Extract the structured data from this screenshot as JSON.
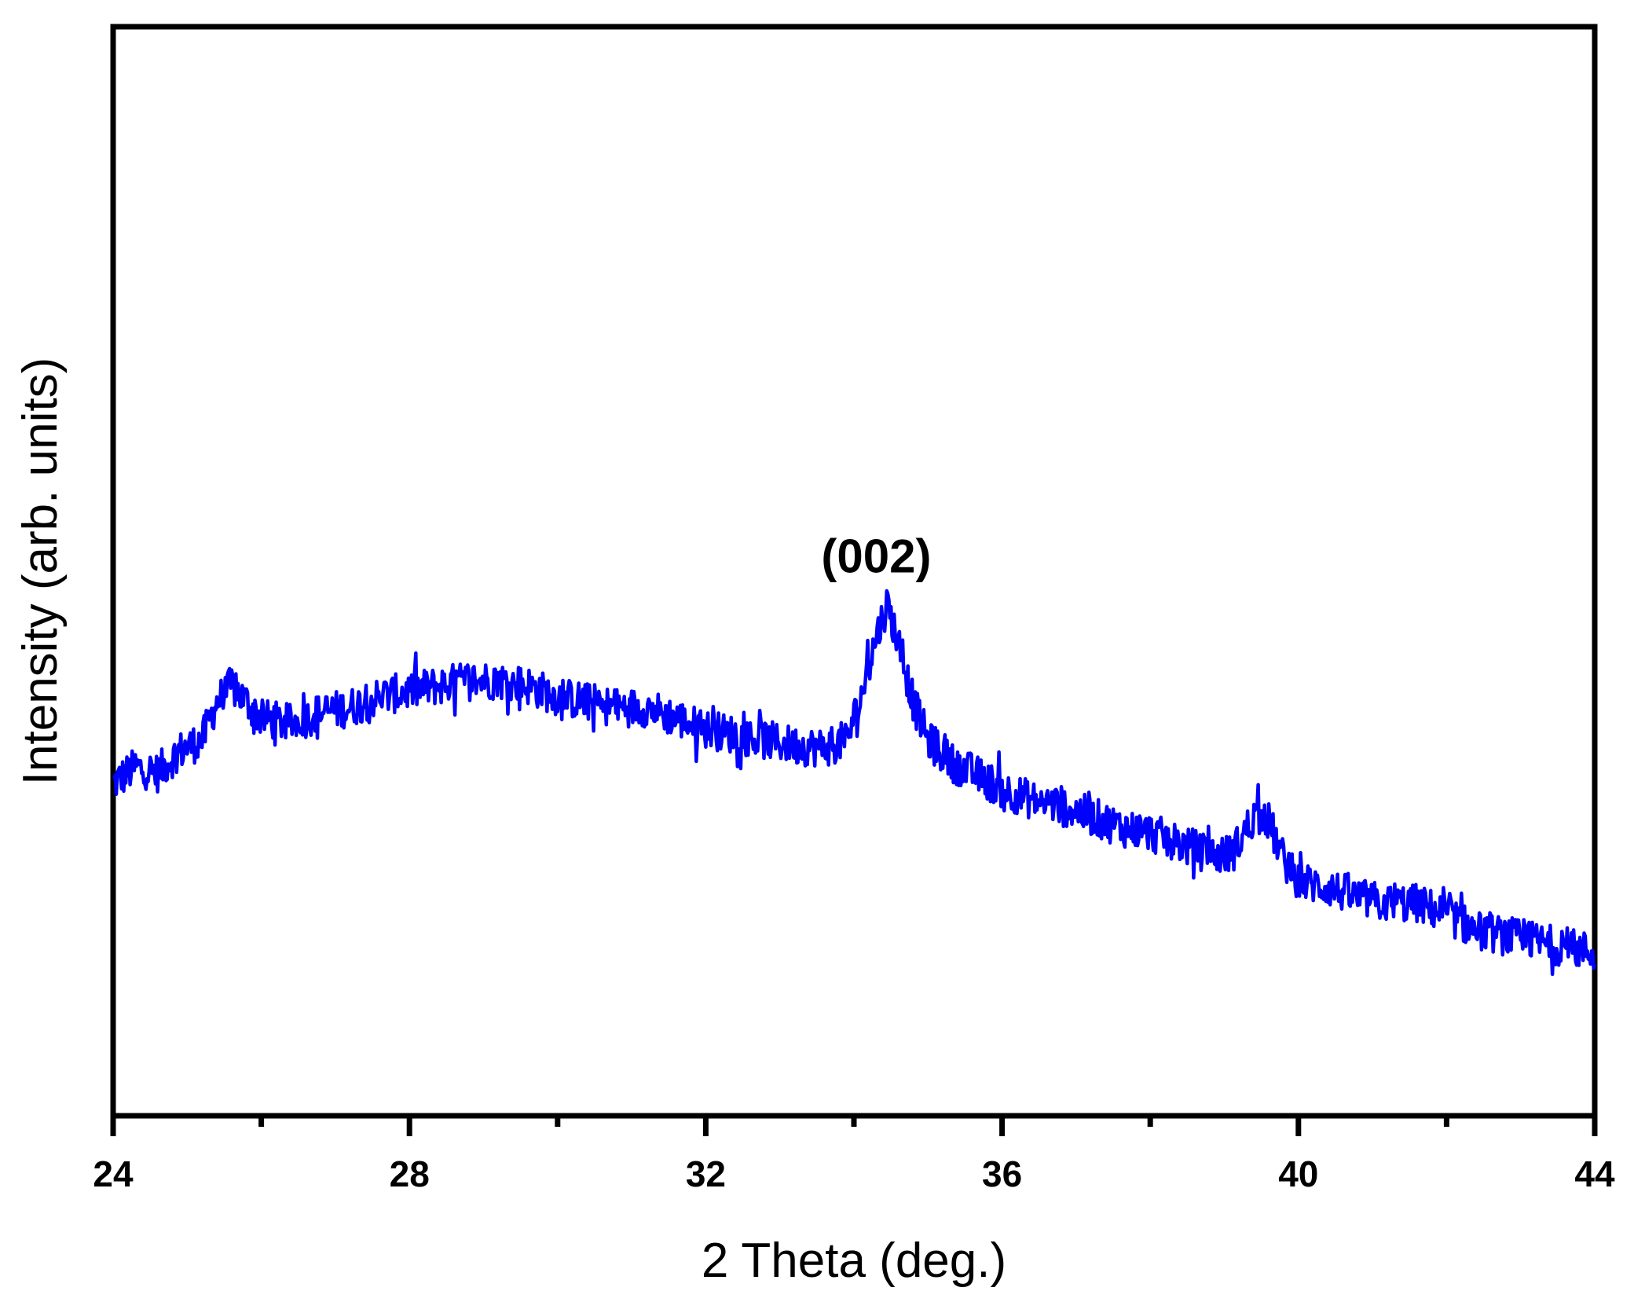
{
  "chart_data": {
    "type": "line",
    "title": "",
    "xlabel": "2 Theta (deg.)",
    "ylabel": "Intensity (arb. units)",
    "xlim": [
      24,
      44
    ],
    "ylim": [
      0,
      100
    ],
    "y_ticks_shown": false,
    "x_major_ticks": [
      24,
      28,
      32,
      36,
      40,
      44
    ],
    "x_tick_labels": [
      "24",
      "28",
      "32",
      "36",
      "40",
      "44"
    ],
    "x_minor_ticks": [
      26,
      30,
      34,
      38,
      42
    ],
    "grid": false,
    "legend": "none",
    "series": [
      {
        "color": "#0000ff",
        "points": [
          [
            24.0,
            30.5
          ],
          [
            24.3,
            32.0
          ],
          [
            24.6,
            31.5
          ],
          [
            24.9,
            33.5
          ],
          [
            25.2,
            34.5
          ],
          [
            25.4,
            38.0
          ],
          [
            25.6,
            39.5
          ],
          [
            25.8,
            38.0
          ],
          [
            26.0,
            36.5
          ],
          [
            26.4,
            36.0
          ],
          [
            26.8,
            37.0
          ],
          [
            27.2,
            37.5
          ],
          [
            27.6,
            38.5
          ],
          [
            28.0,
            39.0
          ],
          [
            28.4,
            39.5
          ],
          [
            28.8,
            40.0
          ],
          [
            29.2,
            40.0
          ],
          [
            29.6,
            39.5
          ],
          [
            30.0,
            38.5
          ],
          [
            30.4,
            38.0
          ],
          [
            30.8,
            37.5
          ],
          [
            31.2,
            37.5
          ],
          [
            31.6,
            36.5
          ],
          [
            32.0,
            35.5
          ],
          [
            32.4,
            35.0
          ],
          [
            32.8,
            34.5
          ],
          [
            33.2,
            34.0
          ],
          [
            33.6,
            33.8
          ],
          [
            33.9,
            34.5
          ],
          [
            34.1,
            38.5
          ],
          [
            34.3,
            44.0
          ],
          [
            34.45,
            47.0
          ],
          [
            34.6,
            43.5
          ],
          [
            34.8,
            38.0
          ],
          [
            35.0,
            34.5
          ],
          [
            35.3,
            32.5
          ],
          [
            35.6,
            31.5
          ],
          [
            36.0,
            30.0
          ],
          [
            36.4,
            29.0
          ],
          [
            36.8,
            28.5
          ],
          [
            37.2,
            27.5
          ],
          [
            37.6,
            26.5
          ],
          [
            38.0,
            26.0
          ],
          [
            38.4,
            25.0
          ],
          [
            38.8,
            24.0
          ],
          [
            39.1,
            24.0
          ],
          [
            39.4,
            27.5
          ],
          [
            39.6,
            27.0
          ],
          [
            39.8,
            23.5
          ],
          [
            40.0,
            21.5
          ],
          [
            40.4,
            21.0
          ],
          [
            40.8,
            20.0
          ],
          [
            41.2,
            19.5
          ],
          [
            41.6,
            19.5
          ],
          [
            42.0,
            18.5
          ],
          [
            42.4,
            17.0
          ],
          [
            42.8,
            16.5
          ],
          [
            43.2,
            16.0
          ],
          [
            43.6,
            15.5
          ],
          [
            44.0,
            15.0
          ]
        ]
      }
    ],
    "annotations": [
      {
        "text": "(002)",
        "x": 34.45,
        "y": 47.0
      }
    ]
  }
}
